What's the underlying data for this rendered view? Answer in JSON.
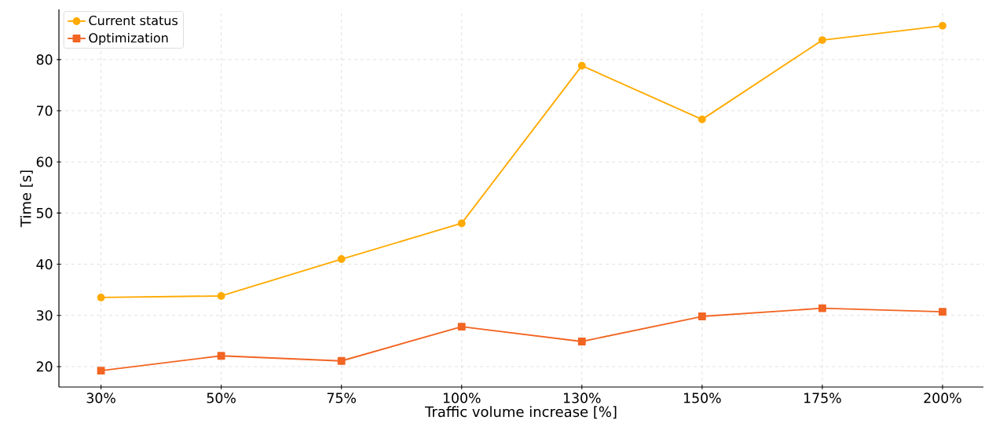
{
  "chart_data": {
    "type": "line",
    "xlabel": "Traffic volume increase [%]",
    "ylabel": "Time [s]",
    "categories": [
      "30%",
      "50%",
      "75%",
      "100%",
      "130%",
      "150%",
      "175%",
      "200%"
    ],
    "series": [
      {
        "name": "Current status",
        "color": "#ffaa00",
        "marker": "circle",
        "values": [
          33.5,
          33.8,
          41.0,
          48.0,
          78.8,
          68.3,
          83.8,
          86.6
        ]
      },
      {
        "name": "Optimization",
        "color": "#f26522",
        "marker": "square",
        "values": [
          19.2,
          22.1,
          21.1,
          27.8,
          24.9,
          29.8,
          31.4,
          30.7
        ]
      }
    ],
    "ylim": [
      16,
      89.8
    ],
    "yticks": [
      20,
      30,
      40,
      50,
      60,
      70,
      80
    ],
    "grid": true,
    "legend": "top left",
    "line_style": "solid"
  }
}
